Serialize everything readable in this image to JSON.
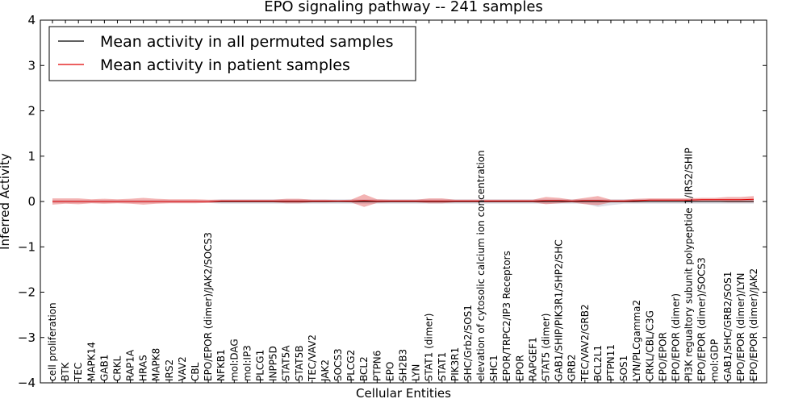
{
  "chart_data": {
    "type": "line",
    "title": "EPO signaling pathway -- 241 samples",
    "xlabel": "Cellular Entities",
    "ylabel": "Inferred Activity",
    "ylim": [
      -4,
      4
    ],
    "yticks": [
      -4,
      -3,
      -2,
      -1,
      0,
      1,
      2,
      3,
      4
    ],
    "ytick_labels": [
      "−4",
      "−3",
      "−2",
      "−1",
      "0",
      "1",
      "2",
      "3",
      "4"
    ],
    "legend_position": "top-left",
    "categories": [
      "cell proliferation",
      "BTK",
      "TEC",
      "MAPK14",
      "GAB1",
      "CRKL",
      "RAP1A",
      "HRAS",
      "MAPK8",
      "IRS2",
      "VAV2",
      "CBL",
      "EPO/EPOR (dimer)/JAK2/SOCS3",
      "NFKB1",
      "mol:DAG",
      "mol:IP3",
      "PLCG1",
      "INPP5D",
      "STAT5A",
      "STAT5B",
      "TEC/VAV2",
      "JAK2",
      "SOCS3",
      "PLCG2",
      "BCL2",
      "PTPN6",
      "EPO",
      "SH2B3",
      "LYN",
      "STAT1 (dimer)",
      "STAT1",
      "PIK3R1",
      "SHC/Grb2/SOS1",
      "elevation of cytosolic calcium ion concentration",
      "SHC1",
      "EPOR/TRPC2/IP3 Receptors",
      "EPOR",
      "RAPGEF1",
      "STAT5 (dimer)",
      "GAB1/SHIP/PIK3R1/SHP2/SHC",
      "GRB2",
      "TEC/VAV2/GRB2",
      "BCL2L1",
      "PTPN11",
      "SOS1",
      "LYN/PLCgamma2",
      "CRKL/CBL/C3G",
      "EPO/EPOR",
      "EPO/EPOR (dimer)",
      "PI3K regualtory subunit polypeptide 1/IRS2/SHIP",
      "EPO/EPOR (dimer)/SOCS3",
      "mol:GDP",
      "GAB1/SHC/GRB2/SOS1",
      "EPO/EPOR (dimer)/LYN",
      "EPO/EPOR (dimer)/JAK2"
    ],
    "series": [
      {
        "name": "Mean activity in all permuted samples",
        "color": "#000000",
        "values": [
          0,
          0,
          0,
          0,
          0,
          0,
          0,
          0,
          0,
          0,
          0,
          0,
          0,
          0,
          0,
          0,
          0,
          0,
          0,
          0,
          0,
          0,
          0,
          0,
          0,
          0,
          0,
          0,
          0,
          0,
          0,
          0,
          0,
          0,
          0,
          0,
          0,
          0,
          0,
          0,
          0,
          0,
          0,
          0,
          0,
          0,
          0,
          0,
          0,
          0,
          0,
          0,
          0,
          0,
          0
        ]
      },
      {
        "name": "Mean activity in patient samples",
        "color": "#e00000",
        "values": [
          0.0,
          0.0,
          0.0,
          0.0,
          0.0,
          0.0,
          0.0,
          0.0,
          0.0,
          0.0,
          0.0,
          0.0,
          0.0,
          0.01,
          0.01,
          0.01,
          0.01,
          0.01,
          0.01,
          0.01,
          0.01,
          0.01,
          0.01,
          0.01,
          0.02,
          0.01,
          0.01,
          0.01,
          0.01,
          0.01,
          0.01,
          0.01,
          0.01,
          0.01,
          0.01,
          0.01,
          0.01,
          0.01,
          0.02,
          0.02,
          0.01,
          0.02,
          0.02,
          0.01,
          0.01,
          0.02,
          0.03,
          0.03,
          0.03,
          0.03,
          0.04,
          0.04,
          0.04,
          0.04,
          0.05
        ],
        "band_lower": [
          -0.07,
          -0.05,
          -0.06,
          -0.04,
          -0.05,
          -0.04,
          -0.05,
          -0.07,
          -0.05,
          -0.04,
          -0.04,
          -0.04,
          -0.03,
          -0.02,
          -0.02,
          -0.02,
          -0.02,
          -0.02,
          -0.04,
          -0.04,
          -0.02,
          -0.02,
          -0.01,
          -0.02,
          -0.12,
          -0.03,
          -0.02,
          -0.02,
          -0.02,
          -0.04,
          -0.04,
          -0.02,
          -0.02,
          -0.02,
          -0.02,
          -0.02,
          -0.02,
          -0.02,
          -0.06,
          -0.04,
          -0.02,
          -0.06,
          -0.08,
          -0.02,
          -0.02,
          -0.02,
          -0.01,
          -0.01,
          -0.01,
          -0.01,
          0.0,
          0.0,
          -0.02,
          -0.02,
          -0.02
        ],
        "band_upper": [
          0.07,
          0.07,
          0.07,
          0.05,
          0.06,
          0.05,
          0.06,
          0.08,
          0.06,
          0.05,
          0.05,
          0.05,
          0.04,
          0.04,
          0.04,
          0.04,
          0.04,
          0.04,
          0.06,
          0.06,
          0.04,
          0.04,
          0.03,
          0.04,
          0.16,
          0.05,
          0.04,
          0.04,
          0.04,
          0.07,
          0.07,
          0.04,
          0.04,
          0.04,
          0.04,
          0.04,
          0.04,
          0.04,
          0.1,
          0.08,
          0.04,
          0.08,
          0.12,
          0.04,
          0.04,
          0.06,
          0.07,
          0.07,
          0.07,
          0.07,
          0.08,
          0.08,
          0.1,
          0.1,
          0.12
        ]
      }
    ],
    "permuted_band_lower": [
      -0.03,
      -0.03,
      -0.03,
      -0.03,
      -0.03,
      -0.03,
      -0.03,
      -0.03,
      -0.03,
      -0.03,
      -0.03,
      -0.03,
      -0.03,
      -0.05,
      -0.05,
      -0.05,
      -0.05,
      -0.05,
      -0.05,
      -0.05,
      -0.05,
      -0.05,
      -0.05,
      -0.05,
      -0.05,
      -0.05,
      -0.05,
      -0.05,
      -0.05,
      -0.05,
      -0.05,
      -0.05,
      -0.05,
      -0.05,
      -0.05,
      -0.05,
      -0.05,
      -0.05,
      -0.05,
      -0.05,
      -0.05,
      -0.05,
      -0.12,
      -0.08,
      -0.05,
      -0.05,
      -0.05,
      -0.05,
      -0.05,
      -0.05,
      -0.05,
      -0.05,
      -0.05,
      -0.05,
      -0.05
    ],
    "permuted_band_upper": [
      0.03,
      0.03,
      0.03,
      0.03,
      0.03,
      0.03,
      0.03,
      0.03,
      0.03,
      0.03,
      0.03,
      0.03,
      0.03,
      0.05,
      0.05,
      0.05,
      0.05,
      0.05,
      0.05,
      0.05,
      0.05,
      0.05,
      0.05,
      0.05,
      0.05,
      0.05,
      0.05,
      0.05,
      0.05,
      0.05,
      0.05,
      0.05,
      0.05,
      0.05,
      0.05,
      0.05,
      0.05,
      0.05,
      0.05,
      0.05,
      0.05,
      0.05,
      0.05,
      0.05,
      0.05,
      0.05,
      0.05,
      0.05,
      0.05,
      0.05,
      0.05,
      0.05,
      0.05,
      0.05,
      0.05
    ]
  }
}
